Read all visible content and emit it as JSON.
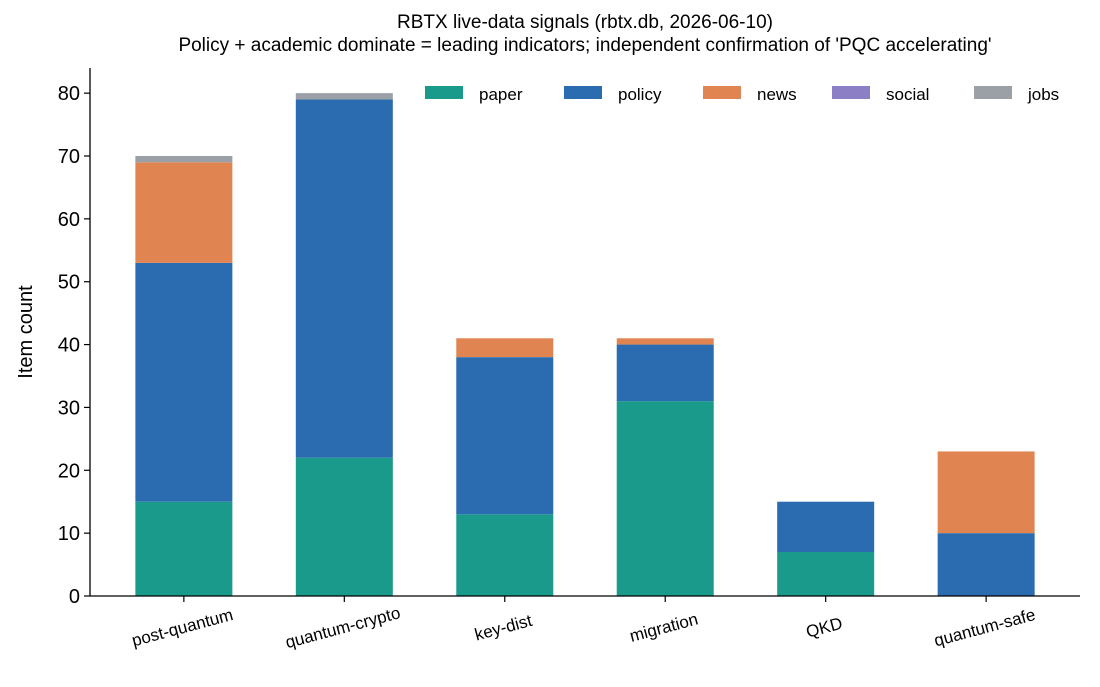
{
  "chart_data": {
    "type": "stacked_bar",
    "title": "RBTX live-data signals (rbtx.db, 2026-06-10)",
    "subtitle": "Policy + academic dominate = leading indicators; independent confirmation of 'PQC accelerating'",
    "y_label": "Item count",
    "categories": [
      "post-quantum",
      "quantum-crypto",
      "key-dist",
      "migration",
      "QKD",
      "quantum-safe"
    ],
    "series": [
      {
        "name": "paper",
        "color": "#1a9a8a",
        "values": [
          15,
          22,
          13,
          31,
          7,
          0
        ]
      },
      {
        "name": "policy",
        "color": "#2b6cb0",
        "values": [
          38,
          57,
          25,
          9,
          8,
          10
        ]
      },
      {
        "name": "news",
        "color": "#e08552",
        "values": [
          16,
          0,
          3,
          1,
          0,
          13
        ]
      },
      {
        "name": "social",
        "color": "#8c7fc6",
        "values": [
          0,
          0,
          0,
          0,
          0,
          0
        ]
      },
      {
        "name": "jobs",
        "color": "#9aa0a6",
        "values": [
          1,
          1,
          0,
          0,
          0,
          0
        ]
      }
    ],
    "ylim": [
      0,
      84
    ],
    "yticks": [
      0,
      10,
      20,
      30,
      40,
      50,
      60,
      70,
      80
    ],
    "legend": "upper right",
    "grid": false
  }
}
